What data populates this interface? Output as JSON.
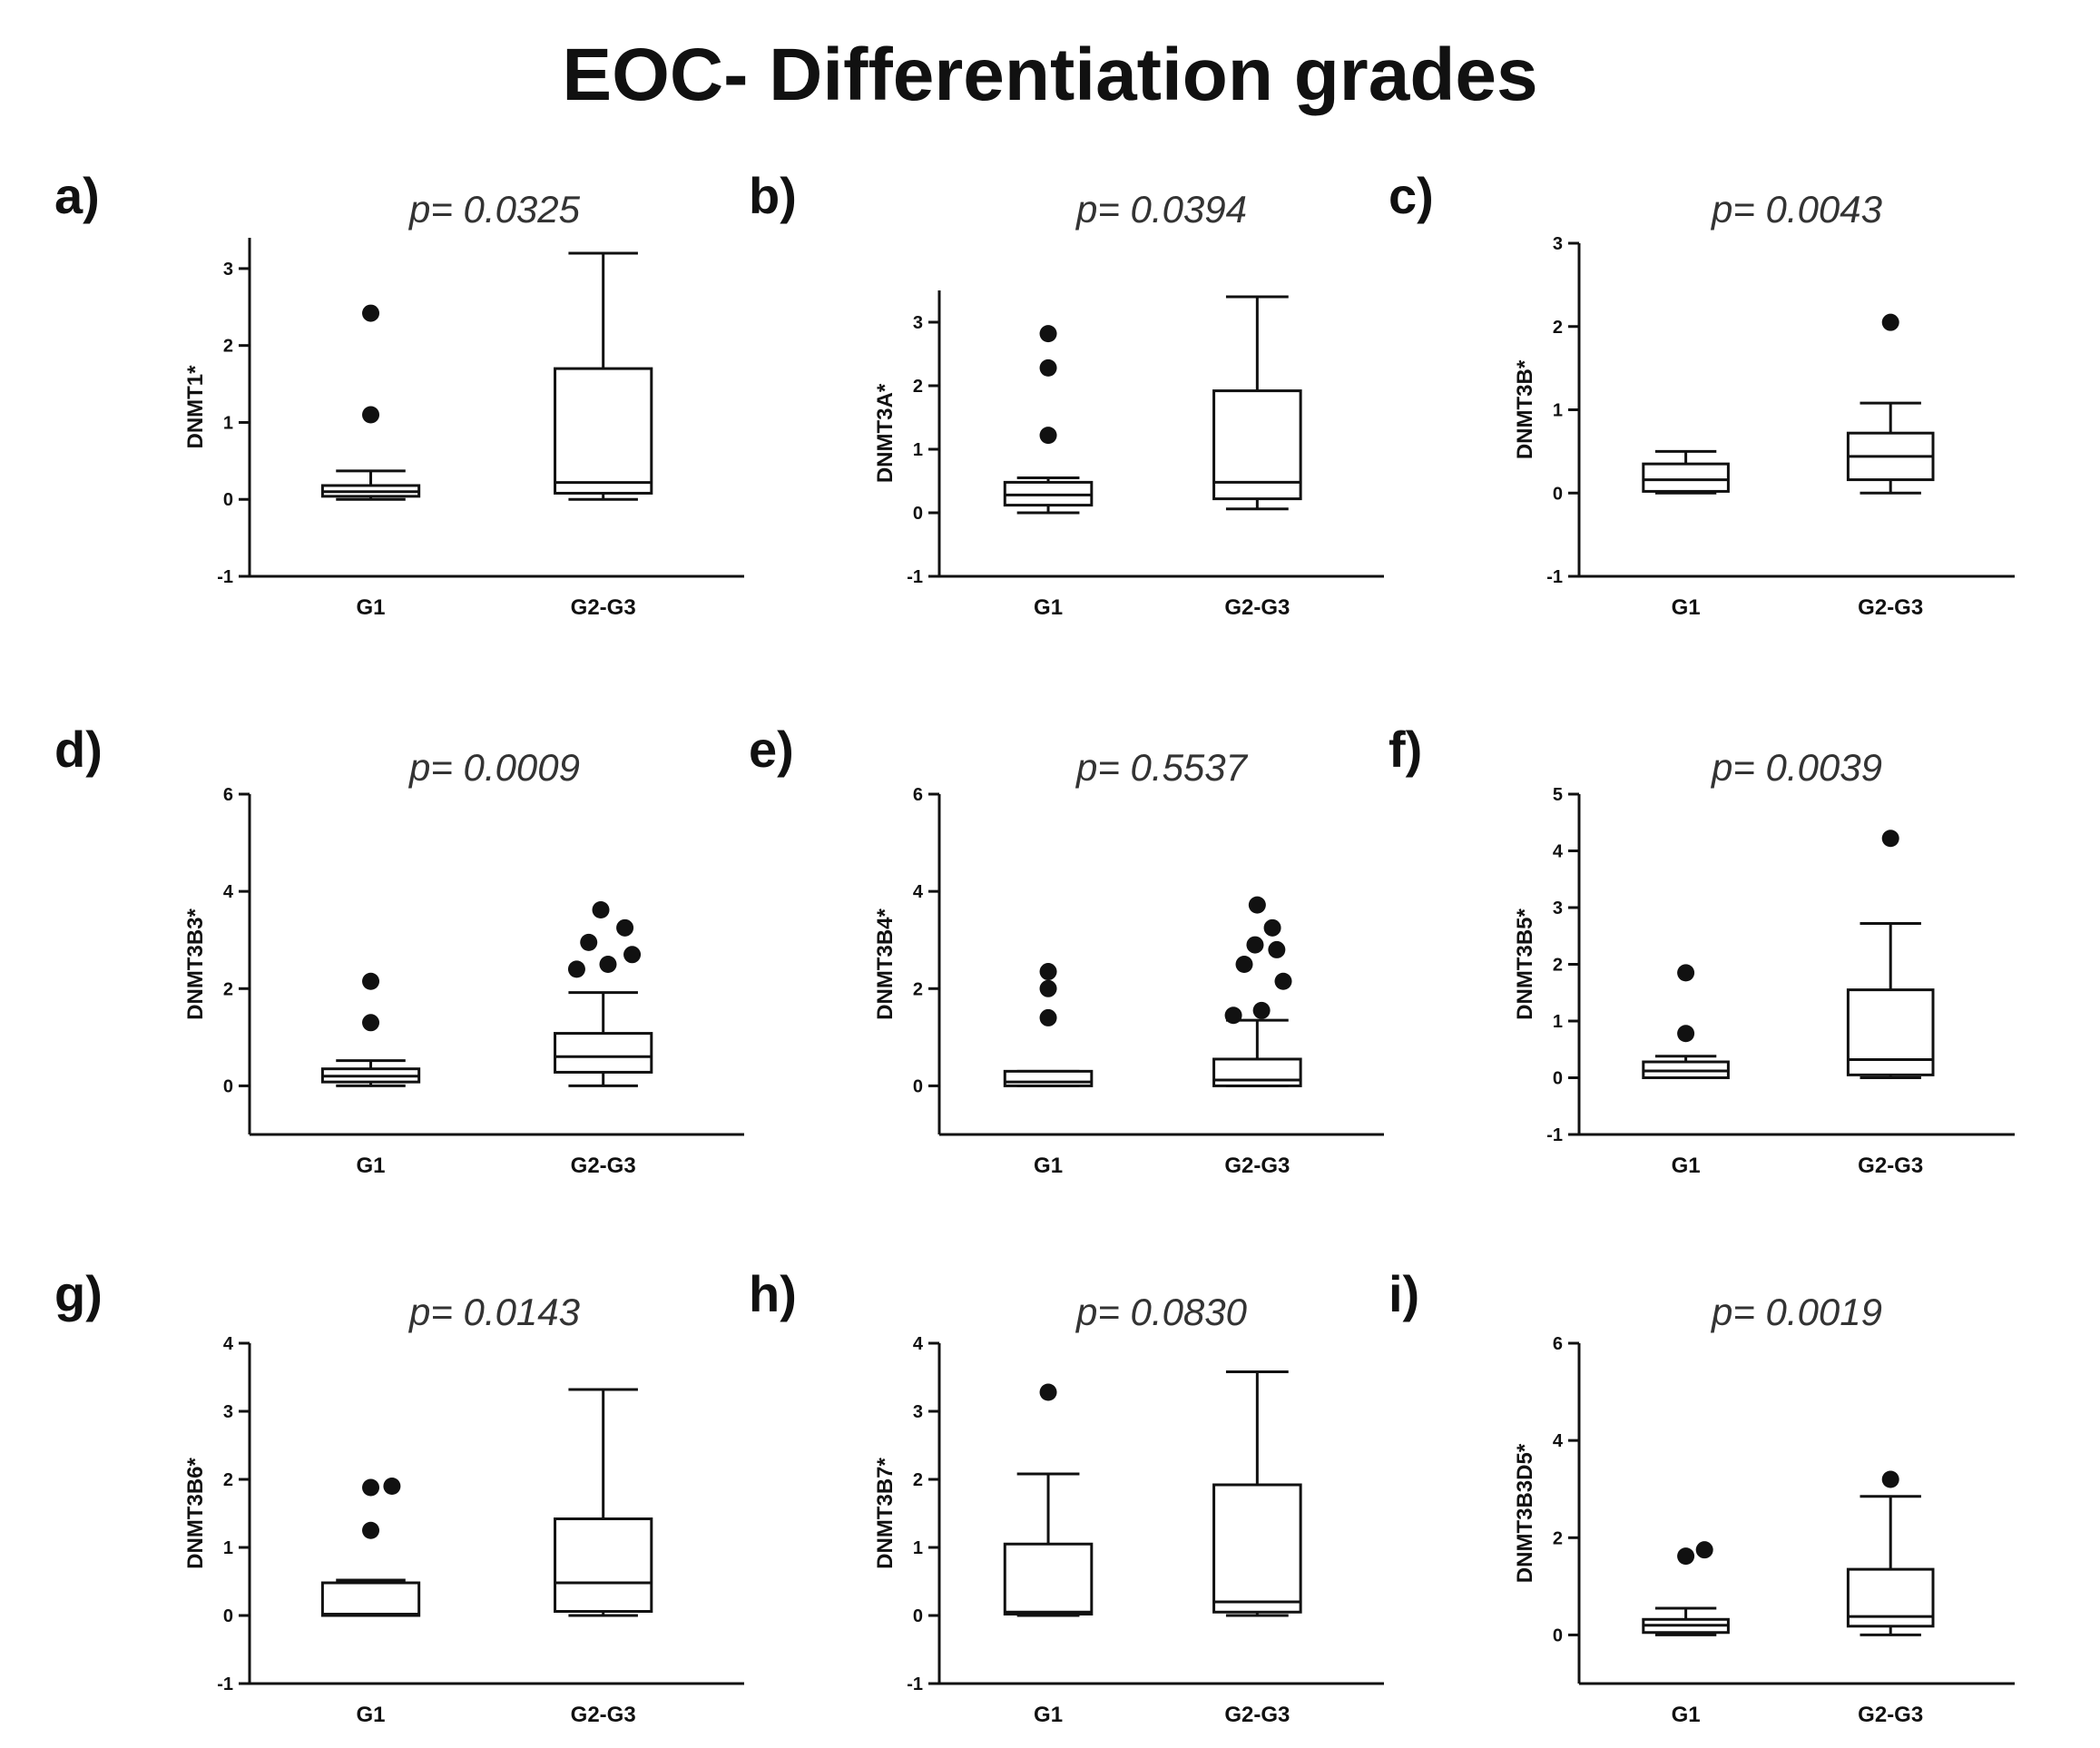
{
  "title": "EOC- Differentiation grades",
  "chart_data": [
    {
      "type": "box",
      "panel": "a)",
      "pvalue": "p= 0.0325",
      "ylabel": "DNMT1*",
      "ylim": [
        -1,
        3.4
      ],
      "yticks": [
        "3",
        "2",
        "1",
        "0",
        "-1"
      ],
      "ytick_values": [
        3,
        2,
        1,
        0,
        -1
      ],
      "categories": [
        "G1",
        "G2-G3"
      ],
      "boxes": [
        {
          "whisker_low": 0,
          "q1": 0.04,
          "median": 0.1,
          "q3": 0.18,
          "whisker_high": 0.37,
          "outliers": [
            1.1,
            2.42
          ]
        },
        {
          "whisker_low": 0,
          "q1": 0.08,
          "median": 0.22,
          "q3": 1.7,
          "whisker_high": 3.2,
          "outliers": []
        }
      ]
    },
    {
      "type": "box",
      "panel": "b)",
      "pvalue": "p= 0.0394",
      "ylabel": "DNMT3A*",
      "ylim": [
        -1,
        3.5
      ],
      "yticks": [
        "3",
        "2",
        "1",
        "0",
        "-1"
      ],
      "ytick_values": [
        3,
        2,
        1,
        0,
        -1
      ],
      "categories": [
        "G1",
        "G2-G3"
      ],
      "boxes": [
        {
          "whisker_low": 0,
          "q1": 0.12,
          "median": 0.28,
          "q3": 0.48,
          "whisker_high": 0.55,
          "outliers": [
            1.22,
            2.28,
            2.82
          ]
        },
        {
          "whisker_low": 0.06,
          "q1": 0.22,
          "median": 0.48,
          "q3": 1.92,
          "whisker_high": 3.4,
          "outliers": []
        }
      ]
    },
    {
      "type": "box",
      "panel": "c)",
      "pvalue": "p= 0.0043",
      "ylabel": "DNMT3B*",
      "ylim": [
        -1,
        3
      ],
      "yticks": [
        "3",
        "2",
        "1",
        "0",
        "-1"
      ],
      "ytick_values": [
        3,
        2,
        1,
        0,
        -1
      ],
      "categories": [
        "G1",
        "G2-G3"
      ],
      "boxes": [
        {
          "whisker_low": 0,
          "q1": 0.02,
          "median": 0.16,
          "q3": 0.35,
          "whisker_high": 0.5,
          "outliers": []
        },
        {
          "whisker_low": 0,
          "q1": 0.16,
          "median": 0.44,
          "q3": 0.72,
          "whisker_high": 1.08,
          "outliers": [
            2.05
          ]
        }
      ]
    },
    {
      "type": "box",
      "panel": "d)",
      "pvalue": "p= 0.0009",
      "ylabel": "DNMT3B3*",
      "ylim": [
        -1,
        6
      ],
      "yticks": [
        "6",
        "4",
        "2",
        "0"
      ],
      "ytick_values": [
        6,
        4,
        2,
        0
      ],
      "categories": [
        "G1",
        "G2-G3"
      ],
      "boxes": [
        {
          "whisker_low": 0,
          "q1": 0.08,
          "median": 0.2,
          "q3": 0.35,
          "whisker_high": 0.52,
          "outliers": [
            1.3,
            2.15
          ]
        },
        {
          "whisker_low": 0,
          "q1": 0.28,
          "median": 0.6,
          "q3": 1.08,
          "whisker_high": 1.92,
          "outliers": [
            2.4,
            2.5,
            2.7,
            2.95,
            3.25,
            3.62
          ]
        }
      ]
    },
    {
      "type": "box",
      "panel": "e)",
      "pvalue": "p= 0.5537",
      "ylabel": "DNMT3B4*",
      "ylim": [
        -1,
        6
      ],
      "yticks": [
        "6",
        "4",
        "2",
        "0"
      ],
      "ytick_values": [
        6,
        4,
        2,
        0
      ],
      "categories": [
        "G1",
        "G2-G3"
      ],
      "boxes": [
        {
          "whisker_low": 0,
          "q1": 0,
          "median": 0.08,
          "q3": 0.3,
          "whisker_high": 0.3,
          "outliers": [
            1.4,
            2.0,
            2.35
          ]
        },
        {
          "whisker_low": 0,
          "q1": 0,
          "median": 0.12,
          "q3": 0.55,
          "whisker_high": 1.35,
          "outliers": [
            1.45,
            1.55,
            2.15,
            2.5,
            2.8,
            2.9,
            3.25,
            3.72
          ]
        }
      ]
    },
    {
      "type": "box",
      "panel": "f)",
      "pvalue": "p= 0.0039",
      "ylabel": "DNMT3B5*",
      "ylim": [
        -1,
        5
      ],
      "yticks": [
        "5",
        "4",
        "3",
        "2",
        "1",
        "0",
        "-1"
      ],
      "ytick_values": [
        5,
        4,
        3,
        2,
        1,
        0,
        -1
      ],
      "categories": [
        "G1",
        "G2-G3"
      ],
      "boxes": [
        {
          "whisker_low": 0,
          "q1": 0,
          "median": 0.12,
          "q3": 0.28,
          "whisker_high": 0.38,
          "outliers": [
            0.78,
            1.85
          ]
        },
        {
          "whisker_low": 0,
          "q1": 0.05,
          "median": 0.32,
          "q3": 1.55,
          "whisker_high": 2.72,
          "outliers": [
            4.22
          ]
        }
      ]
    },
    {
      "type": "box",
      "panel": "g)",
      "pvalue": "p= 0.0143",
      "ylabel": "DNMT3B6*",
      "ylim": [
        -1,
        4
      ],
      "yticks": [
        "4",
        "3",
        "2",
        "1",
        "0",
        "-1"
      ],
      "ytick_values": [
        4,
        3,
        2,
        1,
        0,
        -1
      ],
      "categories": [
        "G1",
        "G2-G3"
      ],
      "boxes": [
        {
          "whisker_low": 0,
          "q1": 0,
          "median": 0.02,
          "q3": 0.48,
          "whisker_high": 0.52,
          "outliers": [
            1.25,
            1.88,
            1.9
          ]
        },
        {
          "whisker_low": 0,
          "q1": 0.06,
          "median": 0.48,
          "q3": 1.42,
          "whisker_high": 3.32,
          "outliers": []
        }
      ]
    },
    {
      "type": "box",
      "panel": "h)",
      "pvalue": "p= 0.0830",
      "ylabel": "DNMT3B7*",
      "ylim": [
        -1,
        4
      ],
      "yticks": [
        "4",
        "3",
        "2",
        "1",
        "0",
        "-1"
      ],
      "ytick_values": [
        4,
        3,
        2,
        1,
        0,
        -1
      ],
      "categories": [
        "G1",
        "G2-G3"
      ],
      "boxes": [
        {
          "whisker_low": 0,
          "q1": 0.02,
          "median": 0.05,
          "q3": 1.05,
          "whisker_high": 2.08,
          "outliers": [
            3.28
          ]
        },
        {
          "whisker_low": 0,
          "q1": 0.05,
          "median": 0.2,
          "q3": 1.92,
          "whisker_high": 3.58,
          "outliers": []
        }
      ]
    },
    {
      "type": "box",
      "panel": "i)",
      "pvalue": "p= 0.0019",
      "ylabel": "DNMT3B3D5*",
      "ylim": [
        -1,
        6
      ],
      "yticks": [
        "6",
        "4",
        "2",
        "0"
      ],
      "ytick_values": [
        6,
        4,
        2,
        0
      ],
      "categories": [
        "G1",
        "G2-G3"
      ],
      "boxes": [
        {
          "whisker_low": 0,
          "q1": 0.05,
          "median": 0.2,
          "q3": 0.32,
          "whisker_high": 0.55,
          "outliers": [
            1.62,
            1.75
          ]
        },
        {
          "whisker_low": 0,
          "q1": 0.18,
          "median": 0.38,
          "q3": 1.35,
          "whisker_high": 2.85,
          "outliers": [
            3.2
          ]
        }
      ]
    }
  ]
}
